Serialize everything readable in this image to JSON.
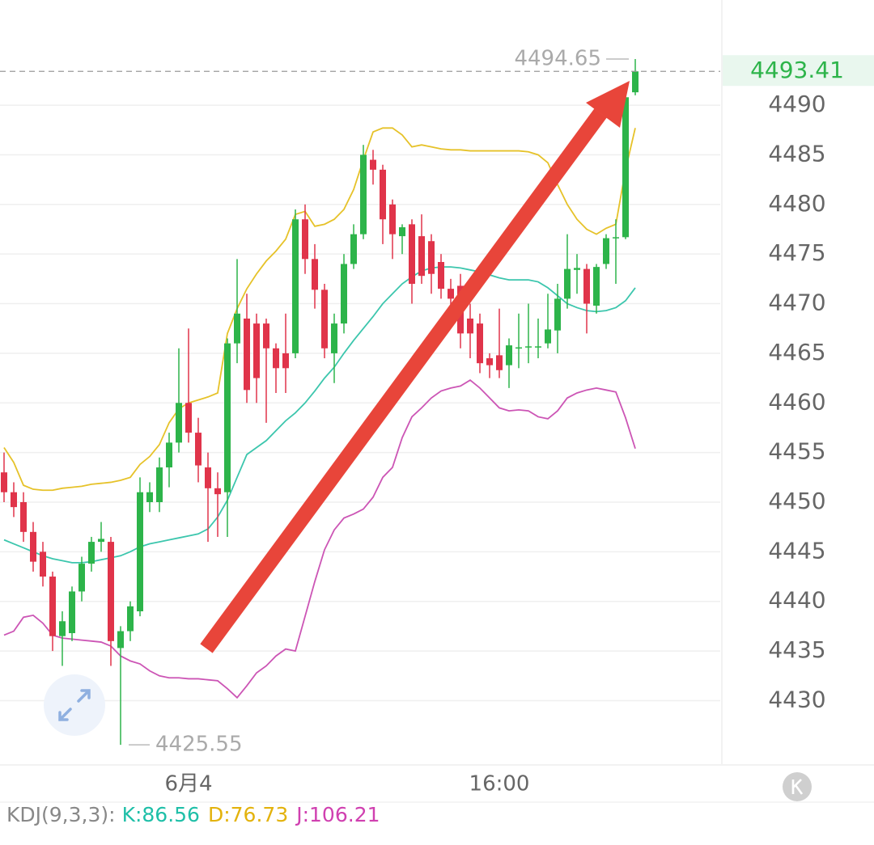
{
  "chart_data": {
    "type": "candlestick",
    "categories": [
      null,
      null,
      null,
      null,
      null,
      null,
      null,
      null,
      null,
      null,
      null,
      null,
      null,
      null,
      null,
      null,
      null,
      null,
      null,
      "6月4",
      null,
      null,
      null,
      null,
      null,
      null,
      null,
      null,
      null,
      null,
      null,
      null,
      null,
      null,
      null,
      null,
      null,
      null,
      null,
      null,
      null,
      null,
      null,
      null,
      null,
      null,
      null,
      null,
      null,
      null,
      null,
      "16:00",
      null,
      null,
      null,
      null,
      null,
      null,
      null,
      null,
      null,
      null,
      null,
      null,
      null,
      null
    ],
    "open": [
      4453,
      4451,
      4450,
      4447,
      4445,
      4442.5,
      4436.5,
      4436.8,
      4441,
      4443.8,
      4446,
      4446,
      4435.3,
      4437,
      4439,
      4450,
      4450,
      4453.5,
      4456,
      4460,
      4457,
      4453.5,
      4451.4,
      4451,
      4466,
      4468.5,
      4468,
      4468,
      4465.5,
      4465,
      4465,
      4478.5,
      4474.5,
      4471.4,
      4465,
      4468,
      4474,
      4477,
      4484.5,
      4483.5,
      4480,
      4476.8,
      4478,
      4476.8,
      4476.3,
      4474.2,
      4471.5,
      4471.8,
      4468.5,
      4468,
      4464.5,
      4464.8,
      4463.8,
      4465.5,
      4465.6,
      4465.6,
      4466,
      4467.3,
      4470.5,
      4473.4,
      4473.5,
      4469.8,
      4474,
      4476.6,
      4476.7,
      4491.3
    ],
    "close": [
      4451,
      4449.5,
      4447,
      4444,
      4442.5,
      4436.5,
      4438,
      4441,
      4443.8,
      4446,
      4446.3,
      4436,
      4437,
      4439.5,
      4451,
      4451,
      4453.5,
      4456,
      4460,
      4457,
      4453.7,
      4451.4,
      4450.8,
      4466,
      4469,
      4461.3,
      4462.5,
      4465.5,
      4463.5,
      4463.5,
      4478.5,
      4474.5,
      4471.4,
      4465.5,
      4468,
      4474,
      4477,
      4485,
      4483.5,
      4478.5,
      4477,
      4477.7,
      4472,
      4472.8,
      4473,
      4471.5,
      4470.5,
      4467,
      4467,
      4464,
      4463.8,
      4463.3,
      4465.8,
      4465.6,
      4465.7,
      4465.7,
      4467.4,
      4470.5,
      4473.5,
      4473.6,
      4470,
      4473.7,
      4476.6,
      4476.7,
      4490.8,
      4493.41
    ],
    "high": [
      4455,
      4452,
      4451,
      4448,
      4446,
      4443,
      4439,
      4441.5,
      4444.5,
      4446.5,
      4448,
      4446.5,
      4437.5,
      4440,
      4452.5,
      4452,
      4454.5,
      4457,
      4465.5,
      4467.5,
      4458.5,
      4455,
      4453,
      4466.5,
      4474.5,
      4471,
      4469,
      4468.5,
      4466,
      4469,
      4479.5,
      4480,
      4476,
      4472,
      4469,
      4475,
      4478,
      4486,
      4485.5,
      4484,
      4480.5,
      4478,
      4478.5,
      4479,
      4477,
      4475,
      4472.5,
      4473,
      4470,
      4469,
      4465,
      4469.5,
      4466.5,
      4469,
      4470,
      4468.5,
      4471,
      4472,
      4477,
      4475,
      4474,
      4474,
      4477,
      4478.5,
      4492,
      4494.65
    ],
    "low": [
      4450,
      4448.5,
      4446,
      4443,
      4441.5,
      4435,
      4433.5,
      4436,
      4440,
      4443,
      4445,
      4433.5,
      4425.55,
      4436,
      4438.5,
      4449,
      4449,
      4451.5,
      4455,
      4456,
      4452,
      4446,
      4446.5,
      4446.5,
      4464,
      4460,
      4460,
      4458,
      4461,
      4461,
      4464.5,
      4473,
      4469.5,
      4464.5,
      4462,
      4467,
      4473.5,
      4476.5,
      4482,
      4476,
      4474.5,
      4475,
      4470,
      4472,
      4471,
      4470.5,
      4469.5,
      4465.5,
      4464.5,
      4463,
      4462.5,
      4462.5,
      4461.5,
      4463.5,
      4464,
      4464.5,
      4465.5,
      4465,
      4469.5,
      4471,
      4467,
      4469,
      4473.5,
      4472,
      4476.5,
      4491
    ],
    "up_color": "#2db44a",
    "down_color": "#e0344a",
    "overlays": [
      {
        "color": "#e6c229",
        "values": [
          4455.5,
          4454,
          4451.7,
          4451.3,
          4451.2,
          4451.2,
          4451.4,
          4451.5,
          4451.6,
          4451.8,
          4451.9,
          4452,
          4452.2,
          4452.5,
          4453.8,
          4454.6,
          4455.8,
          4458,
          4459.4,
          4460,
          4460.3,
          4460.6,
          4461,
          4467,
          4469.5,
          4471.5,
          4473,
          4474.3,
          4475.3,
          4476.5,
          4479,
          4479.3,
          4477.8,
          4478,
          4478.5,
          4479.5,
          4481.5,
          4484.5,
          4487.3,
          4487.7,
          4487.7,
          4487,
          4485.8,
          4486,
          4485.8,
          4485.6,
          4485.5,
          4485.5,
          4485.4,
          4485.4,
          4485.4,
          4485.4,
          4485.4,
          4485.4,
          4485.3,
          4485,
          4484.2,
          4482,
          4480,
          4478.5,
          4477.5,
          4477,
          4477.6,
          4478,
          4483.5,
          4487.7
        ]
      },
      {
        "color": "#3cc6ad",
        "values": [
          4446.2,
          4445.8,
          4445.4,
          4445,
          4444.6,
          4444.3,
          4444.1,
          4443.9,
          4443.9,
          4444,
          4444.2,
          4444.4,
          4444.6,
          4445,
          4445.5,
          4445.8,
          4446,
          4446.2,
          4446.4,
          4446.6,
          4446.8,
          4447.3,
          4448.5,
          4450.2,
          4452.5,
          4454.8,
          4455.5,
          4456.2,
          4457.2,
          4458.2,
          4459,
          4460,
          4461.2,
          4462.5,
          4463.6,
          4465,
          4466.3,
          4467.5,
          4468.7,
          4470,
          4471,
          4472,
          4472.7,
          4473.3,
          4473.6,
          4473.7,
          4473.7,
          4473.6,
          4473.4,
          4473.2,
          4472.9,
          4472.6,
          4472.4,
          4472.4,
          4472.4,
          4472.2,
          4471.6,
          4470.8,
          4470,
          4469.6,
          4469.3,
          4469.2,
          4469.3,
          4469.6,
          4470.3,
          4471.6
        ]
      },
      {
        "color": "#cc55b5",
        "values": [
          4436.6,
          4437,
          4438.4,
          4438.6,
          4437.8,
          4436.6,
          4436.3,
          4436.2,
          4436.1,
          4436,
          4435.9,
          4435.5,
          4434.5,
          4434,
          4433.7,
          4433,
          4432.5,
          4432.3,
          4432.3,
          4432.2,
          4432.2,
          4432.1,
          4432,
          4431.2,
          4430.3,
          4431.5,
          4432.8,
          4433.5,
          4434.5,
          4435.2,
          4435,
          4438.5,
          4442,
          4445.2,
          4447.2,
          4448.4,
          4448.8,
          4449.3,
          4450.5,
          4452.5,
          4453.5,
          4456.5,
          4458.6,
          4459.5,
          4460.5,
          4461.2,
          4461.5,
          4461.7,
          4462.3,
          4461.5,
          4460.5,
          4459.5,
          4459.2,
          4459.3,
          4459.2,
          4458.6,
          4458.4,
          4459.2,
          4460.5,
          4461,
          4461.3,
          4461.5,
          4461.3,
          4461.1,
          4458.5,
          4455.4
        ]
      }
    ],
    "ylim": [
      4423.6,
      4500.6
    ],
    "yticks": [
      4430,
      4435,
      4440,
      4445,
      4450,
      4455,
      4460,
      4465,
      4470,
      4475,
      4480,
      4485,
      4490
    ],
    "grid": true,
    "indicator": {
      "label": "KDJ(9,3,3):",
      "items": [
        {
          "label": "K:",
          "value": 86.56,
          "color": "#1fbfa8"
        },
        {
          "label": "D:",
          "value": 76.73,
          "color": "#e3b20c"
        },
        {
          "label": "J:",
          "value": 106.21,
          "color": "#d040b0"
        }
      ]
    }
  }
}
